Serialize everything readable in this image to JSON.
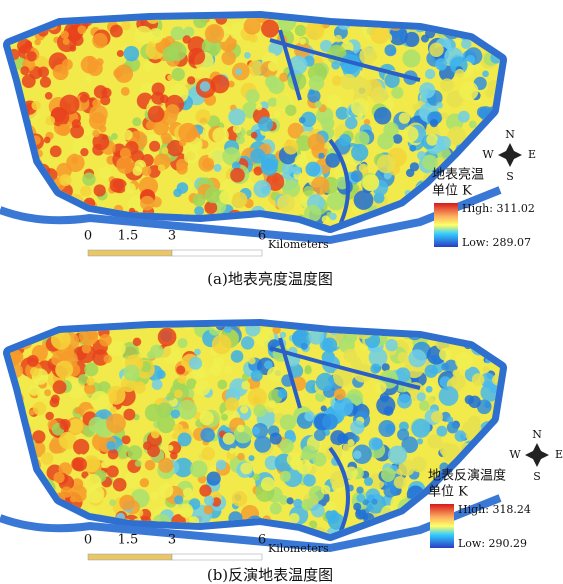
{
  "panels": [
    {
      "caption": "(a)地表亮度温度图",
      "legend_title": "地表亮温",
      "legend_unit": "单位 K",
      "high": "High: 311.02",
      "low": "Low: 289.07",
      "scale_ticks": [
        "0",
        "1.5",
        "3",
        "6"
      ],
      "scale_unit": "Kilometers",
      "compass": {
        "n": "N",
        "e": "E",
        "s": "S",
        "w": "W"
      }
    },
    {
      "caption": "(b)反演地表温度图",
      "legend_title": "地表反演温度",
      "legend_unit": "单位 K",
      "high": "High: 318.24",
      "low": "Low: 290.29",
      "scale_ticks": [
        "0",
        "1.5",
        "3",
        "6"
      ],
      "scale_unit": "Kilometers",
      "compass": {
        "n": "N",
        "e": "E",
        "s": "S",
        "w": "W"
      }
    }
  ]
}
